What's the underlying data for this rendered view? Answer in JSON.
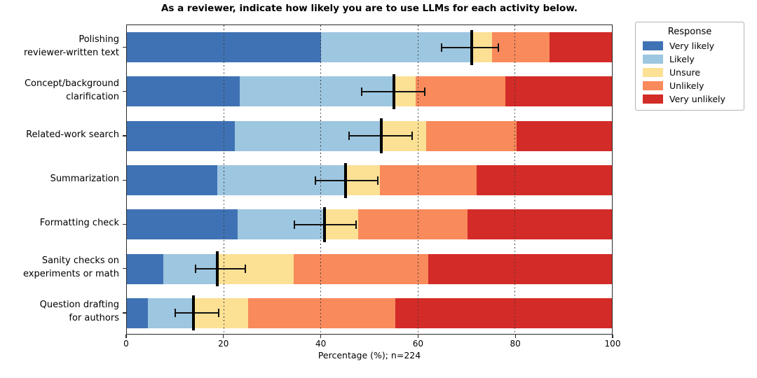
{
  "title": "As a reviewer, indicate how likely you are to use LLMs for each activity below.",
  "xaxis_label": "Percentage (%); n=224",
  "legend": {
    "title": "Response"
  },
  "chart_data": {
    "type": "bar",
    "orientation": "horizontal",
    "stacked": true,
    "title": "As a reviewer, indicate how likely you are to use LLMs for each activity below.",
    "xlabel": "Percentage (%); n=224",
    "ylabel": "",
    "xlim": [
      0,
      100
    ],
    "xticks": [
      0,
      20,
      40,
      60,
      80,
      100
    ],
    "gridlines": [
      20,
      40,
      60,
      80
    ],
    "grid_style": "dotted-vertical",
    "legend_position": "outside-top-right",
    "legend_title": "Response",
    "categories": [
      "Polishing reviewer-written text",
      "Concept/background clarification",
      "Related-work search",
      "Summarization",
      "Formatting check",
      "Sanity checks on experiments or math",
      "Question drafting for authors"
    ],
    "category_label_lines": [
      [
        "Polishing",
        "reviewer-written text"
      ],
      [
        "Concept/background",
        "clarification"
      ],
      [
        "Related-work search"
      ],
      [
        "Summarization"
      ],
      [
        "Formatting check"
      ],
      [
        "Sanity checks on",
        "experiments or math"
      ],
      [
        "Question drafting",
        "for authors"
      ]
    ],
    "series": [
      {
        "name": "Very likely",
        "color": "#3f72b4",
        "values": [
          40.0,
          23.2,
          22.3,
          18.6,
          22.8,
          7.5,
          4.4
        ]
      },
      {
        "name": "Likely",
        "color": "#9dc6e0",
        "values": [
          31.1,
          31.9,
          30.1,
          26.5,
          18.0,
          11.2,
          9.4
        ]
      },
      {
        "name": "Unsure",
        "color": "#fce094",
        "values": [
          4.2,
          4.4,
          9.3,
          7.1,
          6.9,
          15.7,
          11.2
        ]
      },
      {
        "name": "Unlikely",
        "color": "#f98a5b",
        "values": [
          11.9,
          18.5,
          18.6,
          19.9,
          22.5,
          27.8,
          30.4
        ]
      },
      {
        "name": "Very unlikely",
        "color": "#d32b27",
        "values": [
          12.8,
          22.0,
          19.7,
          27.9,
          29.8,
          37.8,
          44.6
        ]
      }
    ],
    "error_bars": {
      "center": [
        71.1,
        55.1,
        52.4,
        45.1,
        40.8,
        18.7,
        13.8
      ],
      "low": [
        64.9,
        48.4,
        45.8,
        38.9,
        34.5,
        14.2,
        9.9
      ],
      "high": [
        76.6,
        61.4,
        58.8,
        51.8,
        47.3,
        24.4,
        19.0
      ],
      "color": "#000000"
    }
  }
}
